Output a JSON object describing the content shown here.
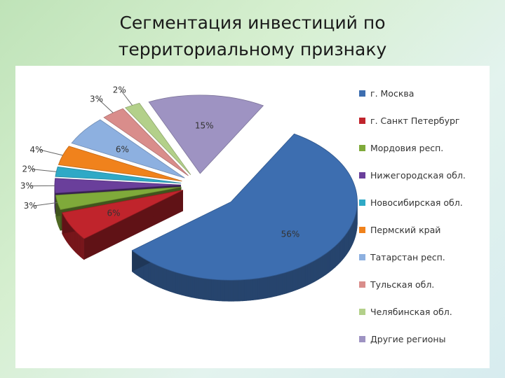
{
  "slide": {
    "title_line1": "Сегментация инвестиций по",
    "title_line2": "территориальному признаку"
  },
  "chart_data": {
    "type": "pie",
    "style": "3d-exploded",
    "legend_position": "right",
    "slices": [
      {
        "label": "г. Москва",
        "value": 56,
        "display": "56%",
        "color": "#3d6eb0"
      },
      {
        "label": "г. Санкт Петербург",
        "value": 6,
        "display": "6%",
        "color": "#c0242c"
      },
      {
        "label": "Мордовия респ.",
        "value": 3,
        "display": "3%",
        "color": "#7faa3a"
      },
      {
        "label": "Нижегородская обл.",
        "value": 3,
        "display": "3%",
        "color": "#6a3f9b"
      },
      {
        "label": "Новосибирская обл.",
        "value": 2,
        "display": "2%",
        "color": "#2fa9c6"
      },
      {
        "label": "Пермский край",
        "value": 4,
        "display": "4%",
        "color": "#f0821c"
      },
      {
        "label": "Татарстан респ.",
        "value": 6,
        "display": "6%",
        "color": "#8db0e0"
      },
      {
        "label": "Тульская обл.",
        "value": 3,
        "display": "3%",
        "color": "#d98d8b"
      },
      {
        "label": "Челябинская обл.",
        "value": 2,
        "display": "2%",
        "color": "#b3d08a"
      },
      {
        "label": "Другие регионы",
        "value": 15,
        "display": "15%",
        "color": "#9e93c2"
      }
    ]
  }
}
